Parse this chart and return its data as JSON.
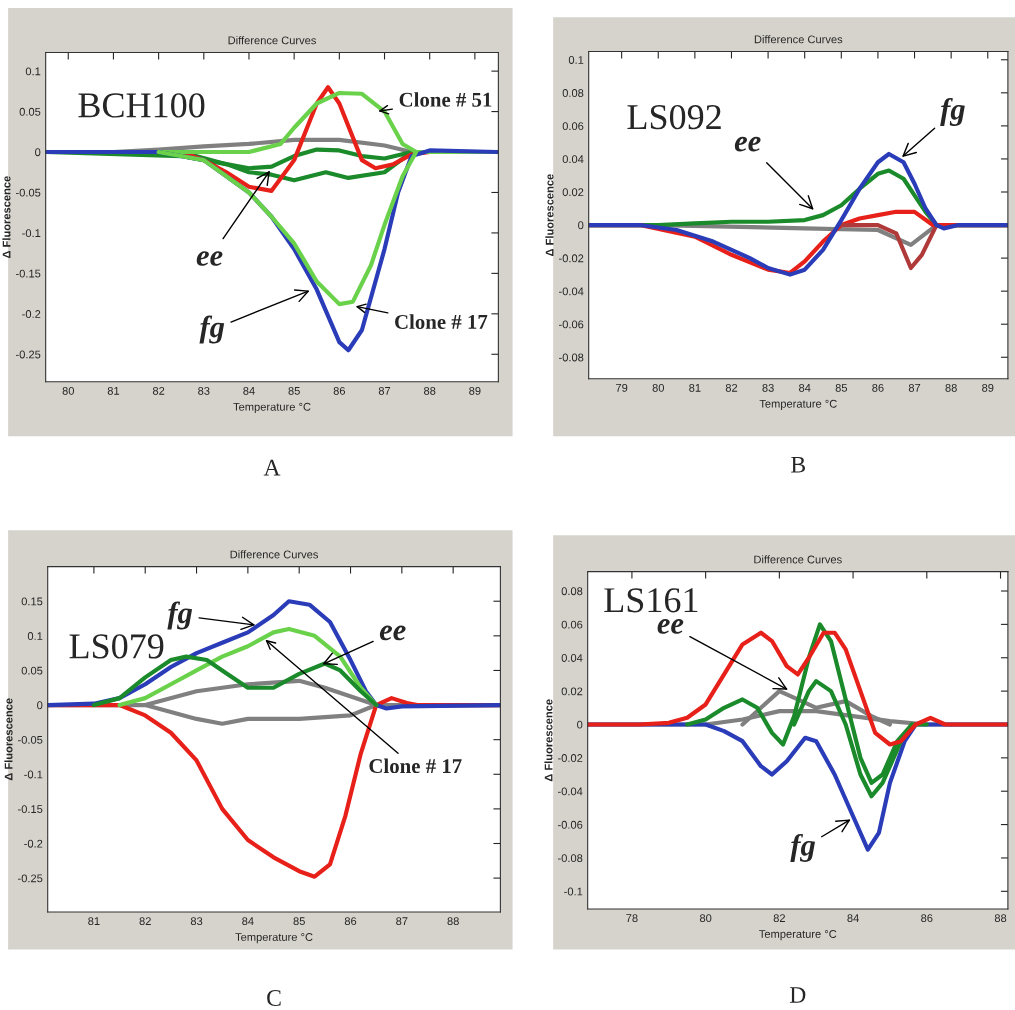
{
  "chart_data": [
    {
      "type": "line",
      "title": "Difference Curves",
      "xlabel": "Temperature °C",
      "ylabel": "Δ Fluorescence",
      "xlim": [
        79.5,
        89.52
      ],
      "xticks": [
        80,
        81,
        82,
        83,
        84,
        85,
        86,
        87,
        88,
        89
      ],
      "ylim": [
        -0.284,
        0.123
      ],
      "yticks": [
        0.1,
        0.05,
        0,
        -0.05,
        -0.1,
        -0.15,
        -0.2,
        -0.25
      ],
      "series": [
        {
          "color": "#808080",
          "x": [
            79.5,
            81,
            82,
            83,
            84,
            85,
            86,
            87,
            87.6,
            89.5
          ],
          "values": [
            0,
            0,
            0.003,
            0.007,
            0.01,
            0.015,
            0.015,
            0.008,
            0,
            0
          ]
        },
        {
          "color": "#1a8a2a",
          "x": [
            79.5,
            82.5,
            83.5,
            84,
            84.5,
            85,
            85.5,
            86,
            86.5,
            87,
            87.6,
            89.5
          ],
          "values": [
            0,
            -0.005,
            -0.015,
            -0.02,
            -0.018,
            -0.005,
            0.003,
            0.002,
            -0.005,
            -0.008,
            0,
            0
          ]
        },
        {
          "color": "#1a8a2a",
          "x": [
            82.5,
            83.5,
            84,
            84.5,
            85,
            85.7,
            86.2,
            87,
            87.6
          ],
          "values": [
            0,
            -0.015,
            -0.025,
            -0.028,
            -0.035,
            -0.025,
            -0.032,
            -0.025,
            0
          ]
        },
        {
          "color": "#e8201a",
          "x": [
            79.5,
            82.5,
            83,
            83.5,
            84,
            84.5,
            85,
            85.5,
            85.75,
            86,
            86.5,
            86.8,
            87.2,
            87.6,
            88,
            89.5
          ],
          "values": [
            0,
            0,
            -0.01,
            -0.025,
            -0.043,
            -0.048,
            -0.01,
            0.06,
            0.08,
            0.06,
            -0.01,
            -0.02,
            -0.015,
            -0.003,
            0,
            0
          ]
        },
        {
          "color": "#6ad24a",
          "x": [
            79.5,
            84,
            84.7,
            85,
            85.5,
            86,
            86.5,
            87,
            87.4,
            87.7,
            89.5
          ],
          "values": [
            0,
            0,
            0.01,
            0.03,
            0.06,
            0.073,
            0.072,
            0.05,
            0.01,
            0,
            0
          ]
        },
        {
          "color": "#2a3cb8",
          "x": [
            79.5,
            82,
            83,
            83.5,
            84,
            84.5,
            85,
            85.5,
            86,
            86.2,
            86.5,
            87,
            87.3,
            87.6,
            88,
            89.5
          ],
          "values": [
            0,
            0,
            -0.01,
            -0.03,
            -0.05,
            -0.08,
            -0.12,
            -0.17,
            -0.235,
            -0.245,
            -0.22,
            -0.12,
            -0.05,
            -0.005,
            0.002,
            0
          ]
        },
        {
          "color": "#6ad24a",
          "x": [
            82,
            83,
            83.5,
            84,
            84.5,
            85,
            85.5,
            86,
            86.3,
            86.7,
            87,
            87.4,
            87.7
          ],
          "values": [
            0,
            -0.01,
            -0.03,
            -0.05,
            -0.08,
            -0.113,
            -0.16,
            -0.188,
            -0.185,
            -0.14,
            -0.09,
            -0.03,
            0
          ]
        }
      ],
      "annotations": [
        "BCH100",
        {
          "text": "Clone # 51",
          "x": 86.8,
          "y": 0.05
        },
        {
          "text": "Clone # 17",
          "x": 86.3,
          "y": -0.19
        },
        {
          "text": "ee",
          "x": 84.5,
          "y": -0.02
        },
        {
          "text": "fg",
          "x": 85.4,
          "y": -0.17
        },
        "A"
      ]
    },
    {
      "type": "line",
      "title": "Difference Curves",
      "xlabel": "Temperature °C",
      "ylabel": "Δ Fluorescence",
      "xlim": [
        78.1,
        89.55
      ],
      "xticks": [
        79,
        80,
        81,
        82,
        83,
        84,
        85,
        86,
        87,
        88,
        89
      ],
      "ylim": [
        -0.093,
        0.105
      ],
      "yticks": [
        0.1,
        0.08,
        0.06,
        0.04,
        0.02,
        0,
        -0.02,
        -0.04,
        -0.06,
        -0.08
      ],
      "series": [
        {
          "color": "#808080",
          "x": [
            78.1,
            80,
            84,
            86,
            86.9,
            87.6,
            89.55
          ],
          "values": [
            0,
            0,
            -0.002,
            -0.003,
            -0.012,
            0,
            0
          ]
        },
        {
          "color": "#1a8a2a",
          "x": [
            78.1,
            80,
            81,
            82,
            83,
            84,
            84.5,
            85,
            85.5,
            86,
            86.3,
            86.7,
            87,
            87.3,
            87.6,
            89.55
          ],
          "values": [
            0,
            0,
            0.001,
            0.002,
            0.002,
            0.003,
            0.006,
            0.012,
            0.022,
            0.031,
            0.033,
            0.028,
            0.018,
            0.008,
            0,
            0
          ]
        },
        {
          "color": "#e8201a",
          "x": [
            78.1,
            79.5,
            81,
            82,
            83,
            83.6,
            84,
            84.5,
            85,
            85.5,
            86,
            86.5,
            87,
            87.5,
            88,
            89.55
          ],
          "values": [
            0,
            0,
            -0.007,
            -0.018,
            -0.027,
            -0.029,
            -0.022,
            -0.01,
            0,
            0.004,
            0.006,
            0.008,
            0.008,
            0,
            0,
            0
          ]
        },
        {
          "color": "#b03a3a",
          "x": [
            85,
            86,
            86.5,
            86.9,
            87.2,
            87.6
          ],
          "values": [
            0,
            0,
            -0.005,
            -0.026,
            -0.018,
            0
          ]
        },
        {
          "color": "#2a3cb8",
          "x": [
            78.1,
            79.5,
            80.5,
            81.5,
            82.5,
            83,
            83.6,
            84,
            84.5,
            85,
            85.5,
            86,
            86.3,
            86.7,
            87,
            87.3,
            87.6,
            87.8,
            88.2,
            89.55
          ],
          "values": [
            0,
            0,
            -0.003,
            -0.01,
            -0.02,
            -0.026,
            -0.03,
            -0.027,
            -0.015,
            0.003,
            0.022,
            0.038,
            0.043,
            0.038,
            0.025,
            0.01,
            0,
            -0.002,
            0,
            0
          ]
        }
      ],
      "annotations": [
        "LS092",
        {
          "text": "ee",
          "x": 84.3,
          "y": 0.008
        },
        {
          "text": "fg",
          "x": 86.6,
          "y": 0.04
        },
        "B"
      ]
    },
    {
      "type": "line",
      "title": "Difference Curves",
      "xlabel": "Temperature °C",
      "ylabel": "Δ Fluorescence",
      "xlim": [
        80.1,
        88.92
      ],
      "xticks": [
        81,
        82,
        83,
        84,
        85,
        86,
        87,
        88
      ],
      "ylim": [
        -0.299,
        0.2
      ],
      "yticks": [
        0.15,
        0.1,
        0.05,
        0,
        -0.05,
        -0.1,
        -0.15,
        -0.2,
        -0.25
      ],
      "series": [
        {
          "color": "#808080",
          "x": [
            80.1,
            82,
            83,
            84,
            85,
            85.5,
            86.5,
            88.92
          ],
          "values": [
            0,
            0,
            0.02,
            0.03,
            0.035,
            0.025,
            0,
            0
          ]
        },
        {
          "color": "#808080",
          "x": [
            82,
            83,
            83.5,
            84,
            85,
            86,
            86.5
          ],
          "values": [
            0,
            -0.02,
            -0.027,
            -0.02,
            -0.02,
            -0.015,
            0
          ]
        },
        {
          "color": "#e8201a",
          "x": [
            80.1,
            81.5,
            82,
            82.5,
            83,
            83.5,
            84,
            84.5,
            85,
            85.3,
            85.6,
            85.9,
            86.2,
            86.5,
            86.8,
            87.1,
            87.3,
            88.92
          ],
          "values": [
            0,
            0,
            -0.015,
            -0.04,
            -0.08,
            -0.15,
            -0.195,
            -0.22,
            -0.24,
            -0.248,
            -0.23,
            -0.16,
            -0.07,
            0,
            0.01,
            0.003,
            0,
            0
          ]
        },
        {
          "color": "#2a3cb8",
          "x": [
            80.1,
            81,
            81.5,
            82,
            82.5,
            83,
            83.5,
            84,
            84.5,
            84.8,
            85.2,
            85.6,
            86,
            86.3,
            86.5,
            86.7,
            87,
            88.92
          ],
          "values": [
            0,
            0.002,
            0.01,
            0.03,
            0.055,
            0.075,
            0.09,
            0.105,
            0.13,
            0.15,
            0.145,
            0.12,
            0.065,
            0.02,
            0,
            -0.005,
            -0.002,
            0
          ]
        },
        {
          "color": "#6ad24a",
          "x": [
            81.5,
            82,
            82.5,
            83,
            83.5,
            84,
            84.5,
            84.8,
            85.3,
            85.8,
            86.2,
            86.5
          ],
          "values": [
            0,
            0.01,
            0.03,
            0.05,
            0.07,
            0.085,
            0.105,
            0.11,
            0.1,
            0.07,
            0.025,
            0
          ]
        },
        {
          "color": "#1a8a2a",
          "x": [
            81,
            81.5,
            82,
            82.5,
            82.8,
            83.2,
            83.6,
            84,
            84.5,
            85,
            85.5,
            85.8,
            86.2,
            86.5
          ],
          "values": [
            0,
            0.01,
            0.04,
            0.065,
            0.07,
            0.065,
            0.045,
            0.025,
            0.025,
            0.045,
            0.06,
            0.05,
            0.02,
            0
          ]
        }
      ],
      "annotations": [
        "LS079",
        {
          "text": "fg",
          "x": 84.2,
          "y": 0.115
        },
        {
          "text": "ee",
          "x": 85.4,
          "y": 0.057
        },
        {
          "text": "Clone # 17",
          "x": 84.3,
          "y": 0.097
        },
        "C"
      ]
    },
    {
      "type": "line",
      "title": "Difference Curves",
      "xlabel": "Temperature °C",
      "ylabel": "Δ Fluorescence",
      "xlim": [
        76.8,
        88.2
      ],
      "xticks": [
        78,
        80,
        82,
        84,
        86,
        88
      ],
      "ylim": [
        -0.1106,
        0.0916
      ],
      "yticks": [
        0.08,
        0.06,
        0.04,
        0.02,
        0,
        -0.02,
        -0.04,
        -0.06,
        -0.08,
        -0.1
      ],
      "series": [
        {
          "color": "#808080",
          "x": [
            76.8,
            80,
            81,
            82,
            83,
            84,
            85,
            86,
            88.2
          ],
          "values": [
            0,
            0,
            0.003,
            0.008,
            0.008,
            0.005,
            0.002,
            0,
            0
          ]
        },
        {
          "color": "#808080",
          "x": [
            81,
            81.5,
            82,
            82.5,
            83,
            83.8,
            84.5,
            85
          ],
          "values": [
            0,
            0.01,
            0.02,
            0.015,
            0.01,
            0.014,
            0.005,
            0
          ]
        },
        {
          "color": "#2a3cb8",
          "x": [
            76.8,
            80,
            80.5,
            81,
            81.5,
            81.8,
            82.2,
            82.7,
            83,
            83.5,
            84,
            84.4,
            84.7,
            85,
            85.4,
            85.7,
            86,
            88.2
          ],
          "values": [
            0,
            0,
            -0.004,
            -0.01,
            -0.025,
            -0.03,
            -0.022,
            -0.008,
            -0.01,
            -0.03,
            -0.055,
            -0.075,
            -0.065,
            -0.035,
            -0.01,
            0,
            0,
            0
          ]
        },
        {
          "color": "#1a8a2a",
          "x": [
            79.5,
            80,
            80.5,
            81,
            81.4,
            81.8,
            82.1,
            82.4,
            82.8,
            83.1,
            83.4,
            83.8,
            84.2,
            84.5,
            84.8,
            85.2,
            85.6,
            86
          ],
          "values": [
            0,
            0.003,
            0.01,
            0.015,
            0.01,
            -0.005,
            -0.012,
            0.005,
            0.04,
            0.06,
            0.05,
            0.015,
            -0.02,
            -0.035,
            -0.03,
            -0.01,
            0,
            0
          ]
        },
        {
          "color": "#1a8a2a",
          "x": [
            82.4,
            82.8,
            83,
            83.4,
            83.8,
            84.2,
            84.5,
            84.8,
            85.3,
            85.6
          ],
          "values": [
            0,
            0.02,
            0.026,
            0.02,
            0,
            -0.03,
            -0.043,
            -0.035,
            -0.01,
            0
          ]
        },
        {
          "color": "#e8201a",
          "x": [
            76.8,
            78.2,
            79,
            79.5,
            80,
            80.5,
            81,
            81.5,
            81.8,
            82.2,
            82.5,
            82.8,
            83.2,
            83.5,
            83.8,
            84.2,
            84.6,
            85,
            85.3,
            85.7,
            86.1,
            86.5,
            88.2
          ],
          "values": [
            0,
            0,
            0.001,
            0.004,
            0.012,
            0.03,
            0.048,
            0.055,
            0.05,
            0.035,
            0.03,
            0.04,
            0.055,
            0.055,
            0.045,
            0.02,
            -0.005,
            -0.012,
            -0.01,
            0,
            0.004,
            0,
            0
          ]
        }
      ],
      "annotations": [
        "LS161",
        {
          "text": "ee",
          "x": 82.3,
          "y": 0.02
        },
        {
          "text": "fg",
          "x": 84,
          "y": -0.056
        },
        "D"
      ]
    }
  ]
}
